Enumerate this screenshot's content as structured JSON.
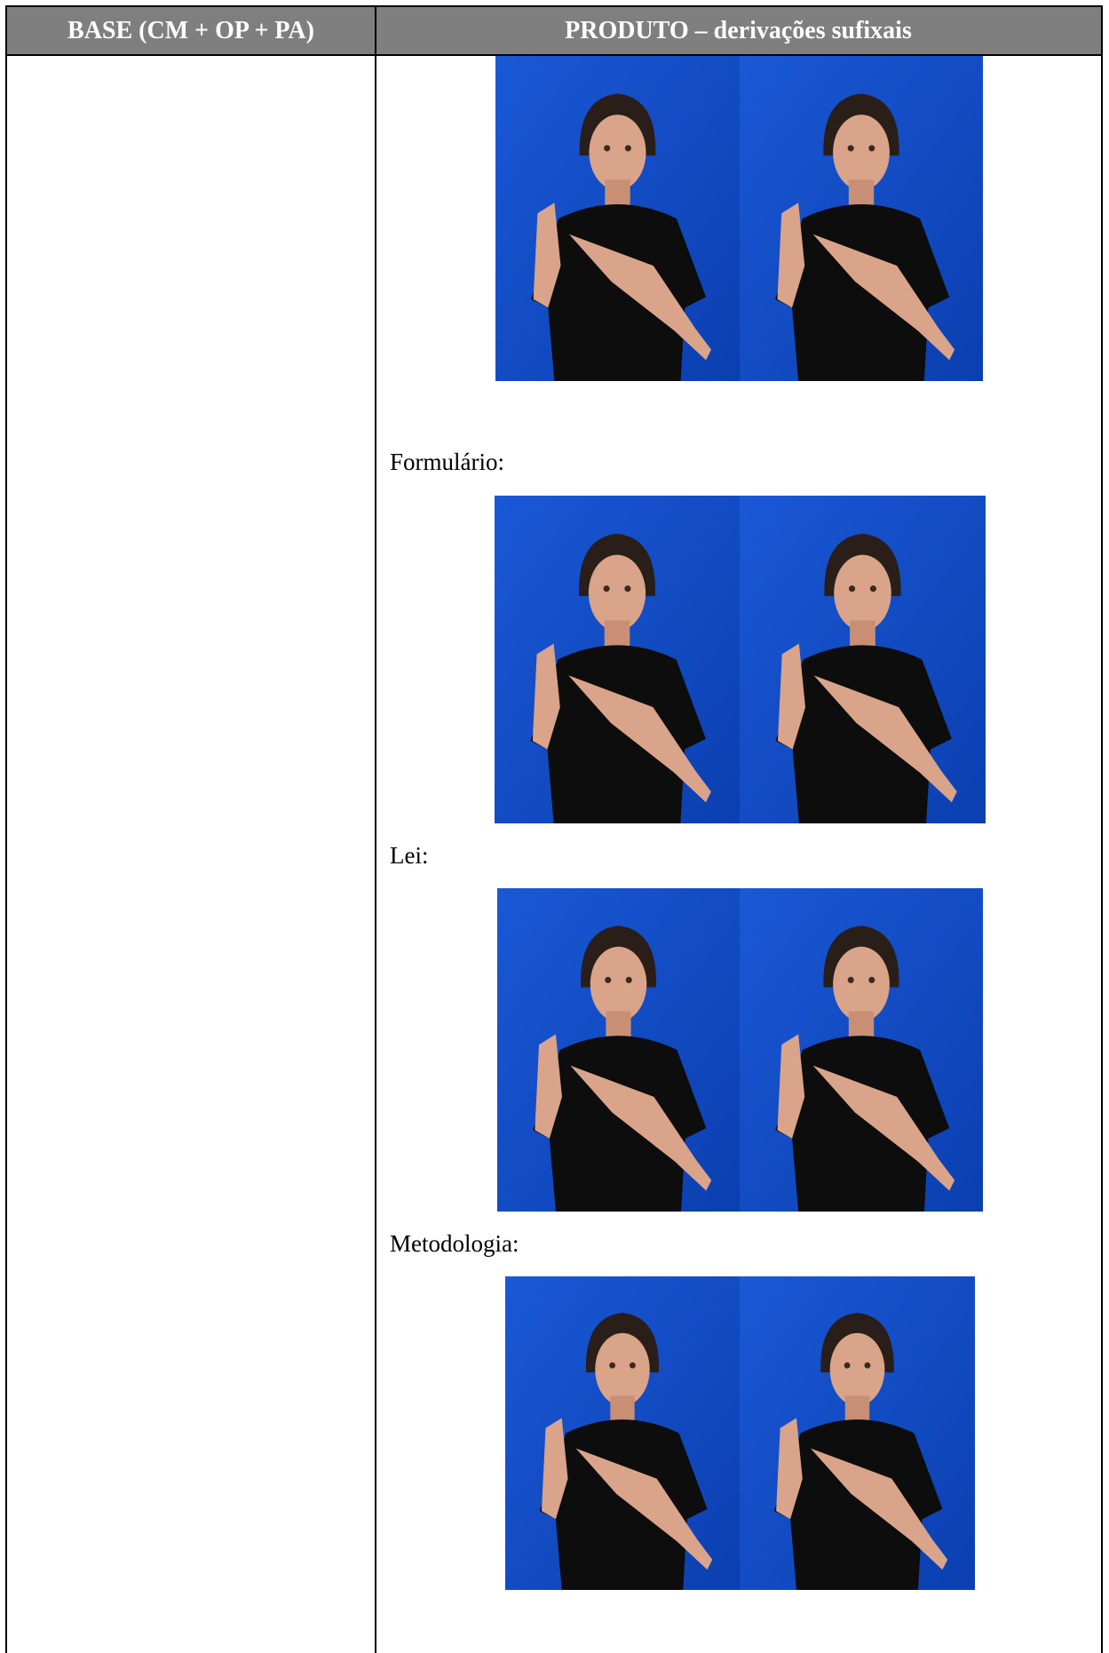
{
  "table": {
    "headers": [
      "BASE (CM + OP + PA)",
      "PRODUTO – derivações sufixais"
    ],
    "product_labels": [
      "Formulário:",
      "Lei:",
      "Metodologia:"
    ]
  }
}
